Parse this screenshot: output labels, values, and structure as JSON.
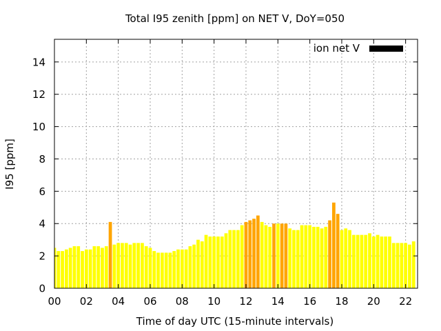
{
  "chart_data": {
    "type": "bar",
    "title": "Total I95 zenith [ppm] on NET V, DoY=050",
    "xlabel": "Time of day UTC (15-minute intervals)",
    "ylabel": "I95 [ppm]",
    "ylim": [
      0,
      15.4
    ],
    "xlim": [
      0,
      22.75
    ],
    "grid": true,
    "legend": {
      "position": "top-right",
      "label": "ion net V",
      "color": "#000000"
    },
    "xticks": [
      "00",
      "02",
      "04",
      "06",
      "08",
      "10",
      "12",
      "14",
      "16",
      "18",
      "20",
      "22"
    ],
    "yticks": [
      "0",
      "2",
      "4",
      "6",
      "8",
      "10",
      "12",
      "14"
    ],
    "bar_interval_hours": 0.25,
    "colors": {
      "normal": "#ffff00",
      "high": "#ffa500",
      "grid": "#a0a0a0"
    },
    "series": [
      {
        "values": [
          2.5,
          2.3,
          2.3,
          2.4,
          2.5,
          2.6,
          2.6,
          2.3,
          2.4,
          2.4,
          2.6,
          2.6,
          2.5,
          2.6,
          4.1,
          2.7,
          2.8,
          2.8,
          2.8,
          2.7,
          2.8,
          2.8,
          2.8,
          2.6,
          2.5,
          2.3,
          2.2,
          2.2,
          2.2,
          2.2,
          2.3,
          2.4,
          2.4,
          2.4,
          2.6,
          2.7,
          3.0,
          2.9,
          3.3,
          3.2,
          3.2,
          3.2,
          3.2,
          3.4,
          3.6,
          3.6,
          3.6,
          3.9,
          4.1,
          4.2,
          4.3,
          4.5,
          4.1,
          3.9,
          3.8,
          4.0,
          4.0,
          4.0,
          4.0,
          3.7,
          3.6,
          3.6,
          3.9,
          3.9,
          3.9,
          3.8,
          3.8,
          3.7,
          3.8,
          4.2,
          5.3,
          4.6,
          3.6,
          3.7,
          3.6,
          3.3,
          3.3,
          3.3,
          3.3,
          3.4,
          3.2,
          3.3,
          3.2,
          3.2,
          3.2,
          2.8,
          2.8,
          2.8,
          2.8,
          2.7,
          2.9
        ],
        "high": [
          false,
          false,
          false,
          false,
          false,
          false,
          false,
          false,
          false,
          false,
          false,
          false,
          false,
          false,
          true,
          false,
          false,
          false,
          false,
          false,
          false,
          false,
          false,
          false,
          false,
          false,
          false,
          false,
          false,
          false,
          false,
          false,
          false,
          false,
          false,
          false,
          false,
          false,
          false,
          false,
          false,
          false,
          false,
          false,
          false,
          false,
          false,
          false,
          true,
          true,
          true,
          true,
          false,
          false,
          false,
          true,
          false,
          true,
          true,
          false,
          false,
          false,
          false,
          false,
          false,
          false,
          false,
          false,
          false,
          true,
          true,
          true,
          false,
          false,
          false,
          false,
          false,
          false,
          false,
          false,
          false,
          false,
          false,
          false,
          false,
          false,
          false,
          false,
          false,
          false,
          false
        ]
      }
    ]
  }
}
